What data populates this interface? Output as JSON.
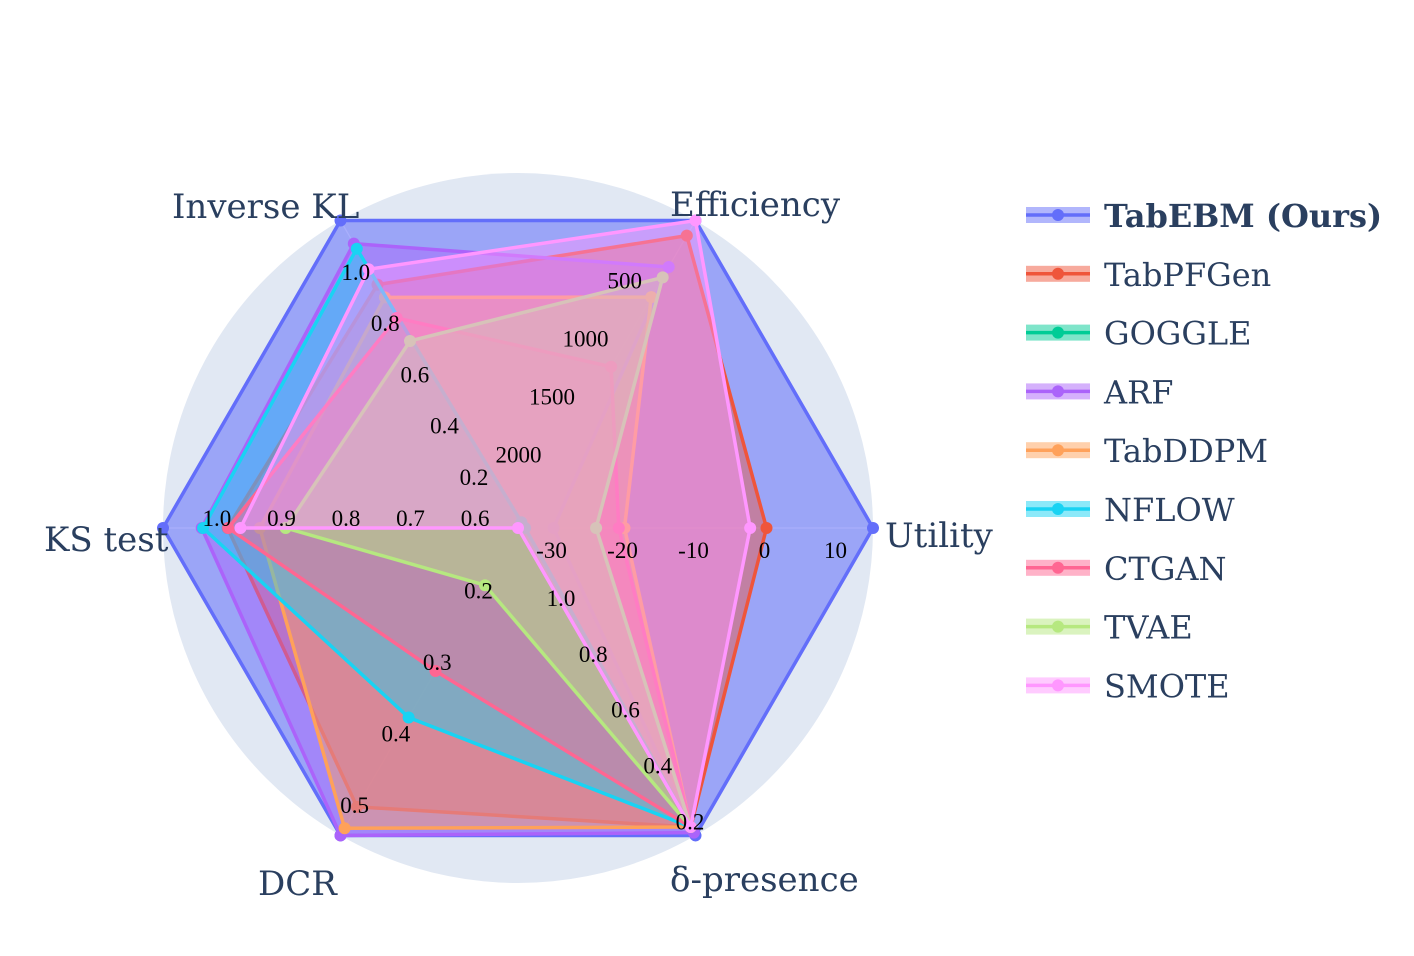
{
  "chart_data": {
    "type": "radar",
    "axes": [
      {
        "name": "Utility",
        "range": [
          -35,
          15
        ],
        "ticks": [
          -30,
          -20,
          -10,
          0,
          10
        ]
      },
      {
        "name": "Efficiency",
        "range": [
          2650,
          0
        ],
        "ticks": [
          500,
          1000,
          1500,
          2000
        ]
      },
      {
        "name": "Inverse KL",
        "range": [
          0,
          1.2
        ],
        "ticks": [
          0.2,
          0.4,
          0.6,
          0.8,
          1.0
        ]
      },
      {
        "name": "KS test",
        "range": [
          0.5,
          1.05
        ],
        "ticks": [
          0.6,
          0.7,
          0.8,
          0.9,
          1.0
        ]
      },
      {
        "name": "DCR",
        "range": [
          0.11,
          0.54
        ],
        "ticks": [
          0.2,
          0.3,
          0.4,
          0.5
        ]
      },
      {
        "name": "δ-presence",
        "range": [
          1.25,
          0.15
        ],
        "ticks": [
          1.0,
          0.8,
          0.6,
          0.4,
          0.2
        ]
      }
    ],
    "series": [
      {
        "name": "TabEBM (Ours)",
        "color": "#636efa",
        "bold": true,
        "values": [
          15,
          0,
          1.2,
          1.05,
          0.54,
          0.15
        ]
      },
      {
        "name": "TabPFGen",
        "color": "#EF553B",
        "values": [
          0,
          130,
          0.95,
          0.95,
          0.5,
          0.18
        ]
      },
      {
        "name": "GOGGLE",
        "color": "#00cc96",
        "values": [
          -35,
          2650,
          0,
          0.5,
          0.11,
          1.25
        ]
      },
      {
        "name": "ARF",
        "color": "#ab63fa",
        "values": [
          -30,
          400,
          1.11,
          0.99,
          0.54,
          0.16
        ]
      },
      {
        "name": "TabDDPM",
        "color": "#FFA15A",
        "values": [
          -20,
          660,
          0.9,
          0.9,
          0.53,
          0.18
        ]
      },
      {
        "name": "NFLOW",
        "color": "#19d3f3",
        "values": [
          -34,
          2600,
          1.09,
          0.988,
          0.375,
          0.18
        ]
      },
      {
        "name": "CTGAN",
        "color": "#FF6692",
        "values": [
          -20.8,
          1260,
          0.82,
          0.949,
          0.31,
          0.18
        ]
      },
      {
        "name": "TVAE",
        "color": "#B6E880",
        "values": [
          -24,
          490,
          0.73,
          0.86,
          0.19,
          0.18
        ]
      },
      {
        "name": "SMOTE",
        "color": "#FF97FF",
        "values": [
          -2.3,
          0,
          1.01,
          0.93,
          0.11,
          0.18
        ]
      }
    ],
    "background_color": "#e1e8f3",
    "legend_position": "right"
  }
}
